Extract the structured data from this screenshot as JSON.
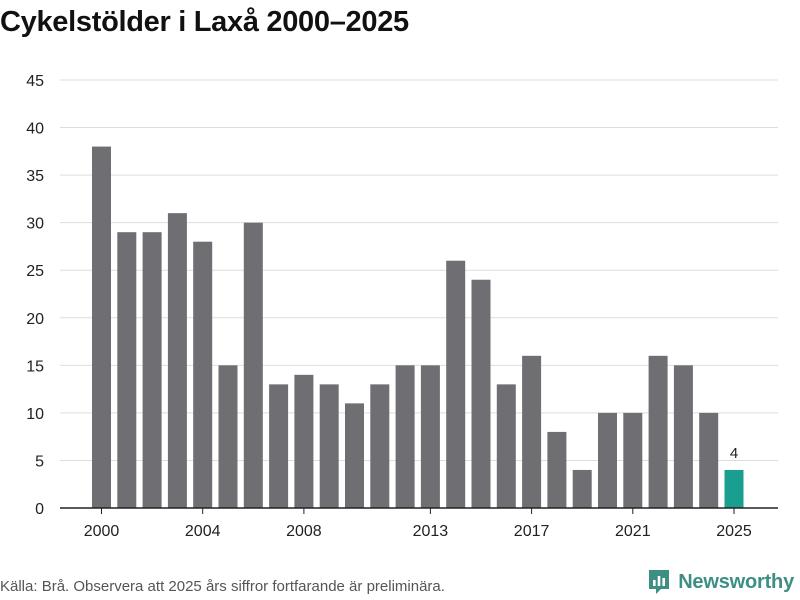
{
  "header": {
    "title": "Cykelstölder i Laxå 2000–2025"
  },
  "footer": {
    "source": "Källa: Brå. Observera att 2025 års siffror fortfarande är preliminära.",
    "brand": "Newsworthy"
  },
  "colors": {
    "bar": "#6f6e73",
    "highlight": "#1a9e8f",
    "grid": "#dddddd",
    "brand": "#3d8f84"
  },
  "chart_data": {
    "type": "bar",
    "title": "Cykelstölder i Laxå 2000–2025",
    "xlabel": "",
    "ylabel": "",
    "ylim": [
      0,
      45
    ],
    "yticks": [
      0,
      5,
      10,
      15,
      20,
      25,
      30,
      35,
      40,
      45
    ],
    "xticks": [
      2000,
      2004,
      2008,
      2013,
      2017,
      2021,
      2025
    ],
    "categories": [
      2000,
      2001,
      2002,
      2003,
      2004,
      2005,
      2006,
      2007,
      2008,
      2009,
      2010,
      2011,
      2012,
      2013,
      2014,
      2015,
      2016,
      2017,
      2018,
      2019,
      2020,
      2021,
      2022,
      2023,
      2024,
      2025
    ],
    "values": [
      38,
      29,
      29,
      31,
      28,
      15,
      30,
      13,
      14,
      13,
      11,
      13,
      15,
      15,
      26,
      24,
      13,
      16,
      8,
      4,
      10,
      10,
      16,
      15,
      10,
      4
    ],
    "highlight": {
      "category": 2025,
      "label": "4"
    },
    "grid": true
  }
}
